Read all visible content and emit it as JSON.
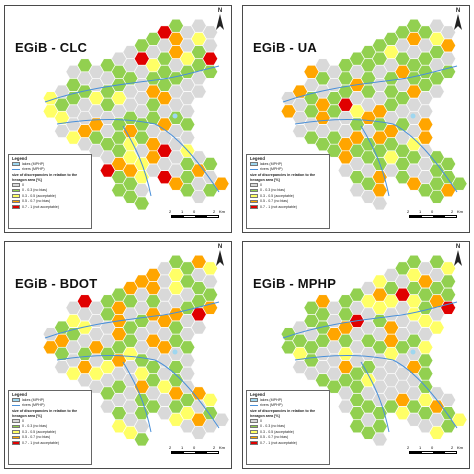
{
  "panels": [
    {
      "title": "EGiB - CLC"
    },
    {
      "title": "EGiB - UA"
    },
    {
      "title": "EGiB - BDOT"
    },
    {
      "title": "EGiB - MPHP"
    }
  ],
  "north_label": "N",
  "legend": {
    "title": "Legend",
    "water_label": "lakes (MPHP)",
    "river_label": "rivers (MPHP)",
    "subtitle": "size of discrepancies in relation to the hexagon area [%]",
    "classes": [
      {
        "label": "0",
        "color": "#d9d9d9"
      },
      {
        "label": "0 - 0.3 (no bias)",
        "color": "#92d050"
      },
      {
        "label": "0.3 - 0.5 (acceptable)",
        "color": "#ffff66"
      },
      {
        "label": "0.5 - 0.7 (no bias)",
        "color": "#ffa500"
      },
      {
        "label": "0.7 - 1 (not acceptable)",
        "color": "#e00000"
      }
    ],
    "water_color": "#9ed7f0",
    "river_color": "#4a90d9"
  },
  "scale": {
    "ticks": [
      "2",
      "1",
      "0",
      "2"
    ],
    "unit": "Km"
  }
}
